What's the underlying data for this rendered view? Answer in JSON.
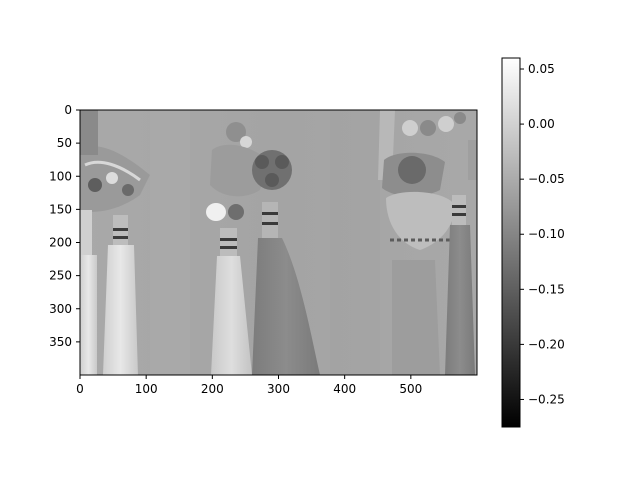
{
  "chart_data": {
    "type": "heatmap",
    "title": "",
    "xlabel": "",
    "ylabel": "",
    "image_width": 600,
    "image_height": 400,
    "xlim": [
      0,
      600
    ],
    "ylim": [
      400,
      0
    ],
    "x_ticks": [
      0,
      100,
      200,
      300,
      400,
      500
    ],
    "y_ticks": [
      0,
      50,
      100,
      150,
      200,
      250,
      300,
      350
    ],
    "colormap": "gray",
    "colorbar": {
      "vmin": -0.275,
      "vmax": 0.06,
      "ticks": [
        0.05,
        0.0,
        -0.05,
        -0.1,
        -0.15,
        -0.2,
        -0.25
      ],
      "tick_labels": [
        "0.05",
        "0.00",
        "−0.05",
        "−0.10",
        "−0.15",
        "−0.20",
        "−0.25"
      ]
    },
    "grid": false,
    "content": "grayscale image of hanging tassel ornaments with knotted heads"
  }
}
